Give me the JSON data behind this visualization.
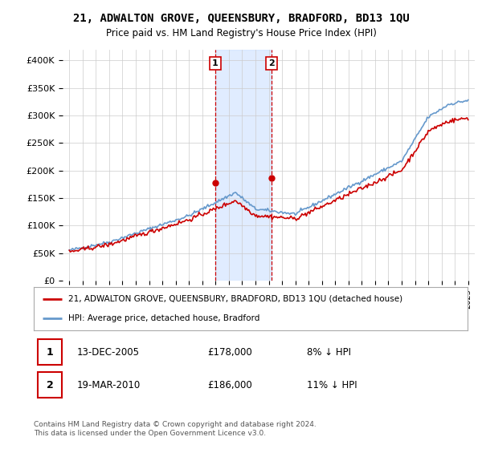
{
  "title": "21, ADWALTON GROVE, QUEENSBURY, BRADFORD, BD13 1QU",
  "subtitle": "Price paid vs. HM Land Registry's House Price Index (HPI)",
  "ylabel_ticks": [
    "£0",
    "£50K",
    "£100K",
    "£150K",
    "£200K",
    "£250K",
    "£300K",
    "£350K",
    "£400K"
  ],
  "ylabel_values": [
    0,
    50000,
    100000,
    150000,
    200000,
    250000,
    300000,
    350000,
    400000
  ],
  "ylim": [
    0,
    420000
  ],
  "legend_line1": "21, ADWALTON GROVE, QUEENSBURY, BRADFORD, BD13 1QU (detached house)",
  "legend_line2": "HPI: Average price, detached house, Bradford",
  "sale1_label": "1",
  "sale1_date": "13-DEC-2005",
  "sale1_price": "£178,000",
  "sale1_hpi": "8% ↓ HPI",
  "sale2_label": "2",
  "sale2_date": "19-MAR-2010",
  "sale2_price": "£186,000",
  "sale2_hpi": "11% ↓ HPI",
  "sale1_x": 2005.96,
  "sale1_y": 178000,
  "sale2_x": 2010.22,
  "sale2_y": 186000,
  "vline1_x": 2005.96,
  "vline2_x": 2010.22,
  "footer": "Contains HM Land Registry data © Crown copyright and database right 2024.\nThis data is licensed under the Open Government Licence v3.0.",
  "line_color_red": "#cc0000",
  "line_color_blue": "#6699cc",
  "background_color": "#ffffff",
  "xlim_left": 1994.5,
  "xlim_right": 2025.5,
  "xtick_start": 1995,
  "xtick_end": 2025
}
